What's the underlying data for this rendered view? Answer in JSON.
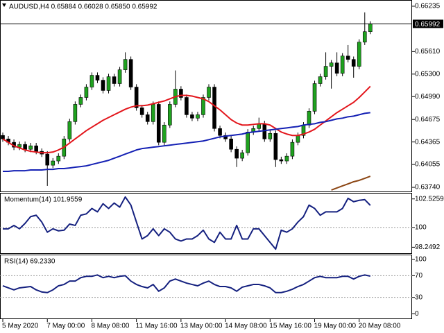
{
  "chart_data": [
    {
      "type": "candlestick",
      "title": "AUDUSD,H4 0.65884 0.66028 0.65850 0.65992",
      "up_color": "#1fa21f",
      "down_color": "#000000",
      "xlim": [
        -0.5,
        73.5
      ],
      "xticks": [
        {
          "value": 0,
          "label": "5 May 2020"
        },
        {
          "value": 8,
          "label": "7 May 00:00"
        },
        {
          "value": 16,
          "label": "8 May 08:00"
        },
        {
          "value": 24,
          "label": "11 May 16:00"
        },
        {
          "value": 32,
          "label": "13 May 00:00"
        },
        {
          "value": 40,
          "label": "14 May 08:00"
        },
        {
          "value": 48,
          "label": "15 May 16:00"
        },
        {
          "value": 56,
          "label": "19 May 00:00"
        },
        {
          "value": 64,
          "label": "20 May 08:00"
        }
      ],
      "ylim": [
        0.63683,
        0.66311
      ],
      "yticks": [
        0.66235,
        {
          "value": 0.6561,
          "label": "0.65610"
        },
        {
          "value": 0.653,
          "label": "0.65300"
        },
        {
          "value": 0.6499,
          "label": "0.64990"
        },
        0.64675,
        0.64365,
        0.64055,
        {
          "value": 0.6374,
          "label": "0.63740"
        }
      ],
      "open": [
        0.64455,
        0.64407,
        0.6436,
        0.64293,
        0.64331,
        0.64264,
        0.64312,
        0.64236,
        0.64198,
        0.64045,
        0.64103,
        0.64169,
        0.64407,
        0.64645,
        0.64883,
        0.64978,
        0.65121,
        0.65283,
        0.65216,
        0.65074,
        0.65264,
        0.65169,
        0.65359,
        0.65502,
        0.65121,
        0.64836,
        0.6474,
        0.64645,
        0.64883,
        0.6436,
        0.64598,
        0.64883,
        0.65093,
        0.64978,
        0.6474,
        0.64693,
        0.6474,
        0.64978,
        0.65121,
        0.6455,
        0.64455,
        0.64407,
        0.64264,
        0.64141,
        0.64217,
        0.64502,
        0.6455,
        0.64617,
        0.64407,
        0.64483,
        0.64122,
        0.64103,
        0.64169,
        0.6436,
        0.64455,
        0.64598,
        0.64788,
        0.65169,
        0.65264,
        0.65407,
        0.65454,
        0.65311,
        0.65549,
        0.65502,
        0.65407,
        0.6574,
        0.65884
      ],
      "high": [
        0.64495,
        0.64447,
        0.644,
        0.64371,
        0.64371,
        0.64352,
        0.64352,
        0.64276,
        0.64238,
        0.64143,
        0.64209,
        0.64447,
        0.64685,
        0.64923,
        0.65018,
        0.65161,
        0.65323,
        0.65323,
        0.65256,
        0.65304,
        0.65304,
        0.65399,
        0.656,
        0.65542,
        0.65161,
        0.64876,
        0.6478,
        0.64923,
        0.64923,
        0.64638,
        0.64923,
        0.6535,
        0.65133,
        0.65018,
        0.6478,
        0.6478,
        0.65018,
        0.65161,
        0.65161,
        0.6459,
        0.64495,
        0.64447,
        0.64304,
        0.64257,
        0.64542,
        0.6459,
        0.647,
        0.64657,
        0.64523,
        0.64523,
        0.64162,
        0.64209,
        0.644,
        0.64495,
        0.64638,
        0.64828,
        0.65209,
        0.65304,
        0.656,
        0.65494,
        0.656,
        0.65589,
        0.657,
        0.65542,
        0.6578,
        0.6615,
        0.66028
      ],
      "low": [
        0.64367,
        0.6432,
        0.64253,
        0.64253,
        0.64224,
        0.64224,
        0.64196,
        0.64158,
        0.6376,
        0.64005,
        0.64063,
        0.64129,
        0.64367,
        0.64605,
        0.64843,
        0.64938,
        0.65081,
        0.65176,
        0.65034,
        0.65034,
        0.65129,
        0.65129,
        0.65319,
        0.65081,
        0.64796,
        0.647,
        0.64605,
        0.64605,
        0.6432,
        0.6432,
        0.64558,
        0.64843,
        0.64938,
        0.647,
        0.64653,
        0.64653,
        0.647,
        0.64938,
        0.6451,
        0.64415,
        0.64367,
        0.64224,
        0.6402,
        0.64101,
        0.64177,
        0.64462,
        0.6451,
        0.64367,
        0.64367,
        0.6402,
        0.64063,
        0.64063,
        0.64129,
        0.6432,
        0.64415,
        0.64558,
        0.64748,
        0.65129,
        0.65224,
        0.651,
        0.65271,
        0.65271,
        0.65462,
        0.6525,
        0.65367,
        0.657,
        0.6585
      ],
      "close": [
        0.64407,
        0.6436,
        0.64293,
        0.64331,
        0.64264,
        0.64312,
        0.64236,
        0.64198,
        0.64045,
        0.64103,
        0.64169,
        0.64407,
        0.64645,
        0.64883,
        0.64978,
        0.65121,
        0.65283,
        0.65216,
        0.65074,
        0.65264,
        0.65169,
        0.65359,
        0.65502,
        0.65121,
        0.64836,
        0.6474,
        0.64645,
        0.64883,
        0.6436,
        0.64598,
        0.64883,
        0.65093,
        0.64978,
        0.6474,
        0.64693,
        0.6474,
        0.64978,
        0.65121,
        0.6455,
        0.64455,
        0.64407,
        0.64264,
        0.64141,
        0.64217,
        0.64502,
        0.6455,
        0.64617,
        0.64407,
        0.64483,
        0.64122,
        0.64103,
        0.64169,
        0.6436,
        0.64455,
        0.64598,
        0.64788,
        0.65169,
        0.65264,
        0.65407,
        0.65454,
        0.65311,
        0.65549,
        0.65502,
        0.65407,
        0.6574,
        0.65884,
        0.65992
      ],
      "series": [
        {
          "color": "#e3161c",
          "values": [
            0.64407,
            0.64359,
            0.64312,
            0.64283,
            0.64255,
            0.64236,
            0.64226,
            0.64217,
            0.64217,
            0.64226,
            0.64255,
            0.64293,
            0.6435,
            0.64407,
            0.64464,
            0.64521,
            0.64569,
            0.64616,
            0.64664,
            0.64702,
            0.6474,
            0.64778,
            0.64816,
            0.64845,
            0.64864,
            0.64864,
            0.64873,
            0.64892,
            0.64911,
            0.6493,
            0.64959,
            0.64988,
            0.65007,
            0.65007,
            0.64997,
            0.64978,
            0.64959,
            0.64921,
            0.64864,
            0.64807,
            0.6474,
            0.64673,
            0.64626,
            0.64598,
            0.64598,
            0.64607,
            0.64616,
            0.64616,
            0.64598,
            0.6455,
            0.64502,
            0.64474,
            0.64455,
            0.64455,
            0.64474,
            0.64502,
            0.6454,
            0.64598,
            0.64655,
            0.64712,
            0.64769,
            0.64816,
            0.64864,
            0.64911,
            0.64978,
            0.65054,
            0.65131
          ]
        },
        {
          "color": "#1420b4",
          "values": [
            0.6396,
            0.6396,
            0.63969,
            0.63969,
            0.63969,
            0.63979,
            0.63979,
            0.63979,
            0.63988,
            0.63988,
            0.63998,
            0.63998,
            0.64007,
            0.64017,
            0.64026,
            0.64036,
            0.64055,
            0.64074,
            0.64093,
            0.64112,
            0.64141,
            0.64169,
            0.64198,
            0.64226,
            0.64255,
            0.64274,
            0.64283,
            0.64293,
            0.64302,
            0.64312,
            0.64321,
            0.64331,
            0.6434,
            0.6435,
            0.64359,
            0.64369,
            0.64378,
            0.64397,
            0.64416,
            0.64435,
            0.64445,
            0.64455,
            0.64464,
            0.64474,
            0.64493,
            0.64502,
            0.64512,
            0.64521,
            0.64531,
            0.6454,
            0.6455,
            0.64559,
            0.64569,
            0.64578,
            0.64598,
            0.64607,
            0.64616,
            0.64635,
            0.64645,
            0.64664,
            0.64683,
            0.64693,
            0.64712,
            0.64721,
            0.6474,
            0.64759,
            0.64769
          ]
        },
        {
          "color": "#8b4513",
          "values": [
            null,
            null,
            null,
            null,
            null,
            null,
            null,
            null,
            null,
            null,
            null,
            null,
            null,
            null,
            null,
            null,
            null,
            null,
            null,
            null,
            null,
            null,
            null,
            null,
            null,
            null,
            null,
            null,
            null,
            null,
            null,
            null,
            null,
            null,
            null,
            null,
            null,
            null,
            null,
            null,
            null,
            null,
            null,
            null,
            null,
            null,
            null,
            null,
            null,
            null,
            null,
            null,
            null,
            null,
            null,
            null,
            null,
            null,
            null,
            0.63703,
            0.63731,
            0.6376,
            0.63788,
            0.63817,
            0.63836,
            0.63864,
            0.63893
          ]
        }
      ]
    },
    {
      "type": "line",
      "title": "Momentum(14) 101.9559",
      "ylim": [
        97.72,
        103.0
      ],
      "yticks": [
        102.5259,
        100,
        98.2492
      ],
      "levels": [
        100
      ],
      "series": [
        {
          "color": "#14207f",
          "values": [
            99.88,
            99.88,
            100.18,
            99.88,
            100.36,
            100.96,
            101.08,
            100.48,
            99.58,
            99.88,
            99.7,
            99.76,
            100.3,
            100.18,
            101.08,
            101.2,
            101.68,
            101.38,
            102.1,
            101.68,
            102.16,
            101.8,
            102.7,
            101.98,
            100.48,
            98.98,
            99.28,
            99.88,
            99.28,
            99.88,
            99.58,
            98.98,
            98.8,
            98.98,
            98.98,
            99.28,
            99.76,
            98.98,
            98.68,
            99.58,
            98.98,
            98.98,
            100.18,
            98.98,
            98.98,
            99.88,
            99.88,
            99.28,
            98.68,
            98.08,
            99.76,
            99.58,
            99.88,
            100.48,
            100.96,
            101.98,
            101.68,
            101.08,
            101.38,
            101.38,
            101.38,
            101.68,
            102.58,
            102.28,
            102.4,
            102.46,
            101.9559
          ]
        }
      ]
    },
    {
      "type": "line",
      "title": "RSI(14) 69.2330",
      "ylim": [
        -8.75,
        107.5
      ],
      "yticks": [
        100,
        70,
        30,
        0
      ],
      "levels": [
        70,
        30
      ],
      "series": [
        {
          "color": "#14207f",
          "values": [
            51.3,
            47.5,
            43.8,
            47.5,
            48.8,
            50.0,
            43.8,
            40.0,
            38.8,
            43.8,
            51.3,
            53.8,
            60.0,
            60.0,
            66.3,
            68.8,
            68.8,
            71.3,
            66.3,
            68.8,
            66.3,
            68.8,
            70.0,
            60.0,
            53.8,
            50.0,
            47.5,
            53.8,
            41.3,
            47.5,
            60.0,
            63.8,
            60.0,
            56.3,
            53.8,
            51.3,
            56.3,
            60.0,
            53.8,
            50.0,
            50.0,
            47.5,
            41.3,
            48.8,
            51.3,
            53.8,
            53.8,
            51.3,
            47.5,
            38.8,
            38.8,
            41.3,
            45.0,
            50.0,
            53.8,
            60.0,
            66.3,
            68.8,
            66.3,
            66.3,
            66.3,
            68.8,
            68.8,
            63.8,
            68.8,
            71.3,
            69.233
          ]
        }
      ]
    }
  ]
}
